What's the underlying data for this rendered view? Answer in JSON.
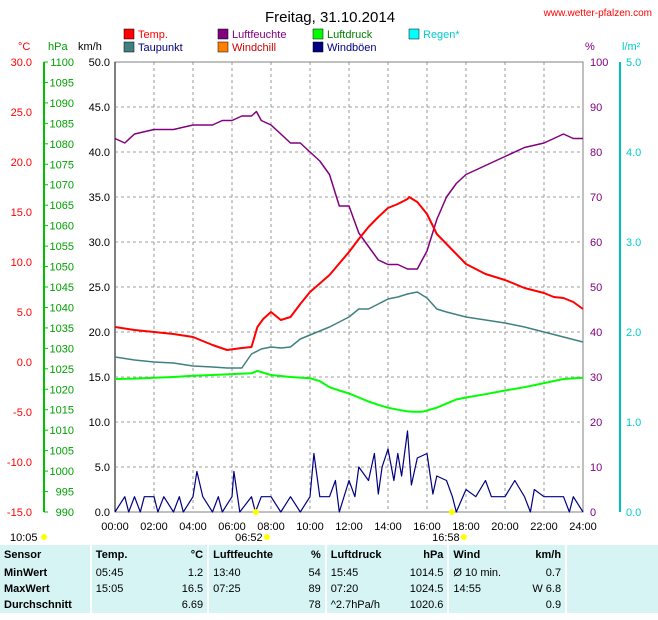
{
  "header": {
    "title": "Freitag, 31.10.2014",
    "url": "www.wetter-pfalzen.com"
  },
  "legend": [
    {
      "label": "Temp.",
      "color": "#ff0000"
    },
    {
      "label": "Luftfeuchte",
      "color": "#800080"
    },
    {
      "label": "Luftdruck",
      "color": "#00ff00"
    },
    {
      "label": "Regen",
      "sup": "*",
      "color": "#00ffff"
    },
    {
      "label": "Taupunkt",
      "color": "#408080"
    },
    {
      "label": "Windchill",
      "color": "#ff8000"
    },
    {
      "label": "Windböen",
      "color": "#000080"
    }
  ],
  "axes_units": {
    "celsius": "°C",
    "hpa": "hPa",
    "kmh": "km/h",
    "percent": "%",
    "lm2": "l/m²"
  },
  "axes_ticks": {
    "celsius": [
      "30.0",
      "25.0",
      "20.0",
      "15.0",
      "10.0",
      "5.0",
      "0.0",
      "-5.0",
      "-10.0",
      "-15.0"
    ],
    "hpa": [
      "1100",
      "1095",
      "1090",
      "1085",
      "1080",
      "1075",
      "1070",
      "1065",
      "1060",
      "1055",
      "1050",
      "1045",
      "1040",
      "1035",
      "1030",
      "1025",
      "1020",
      "1015",
      "1010",
      "1005",
      "1000",
      "995",
      "990"
    ],
    "kmh": [
      "50.0",
      "45.0",
      "40.0",
      "35.0",
      "30.0",
      "25.0",
      "20.0",
      "15.0",
      "10.0",
      "5.0",
      "0.0"
    ],
    "percent": [
      "100",
      "90",
      "80",
      "70",
      "60",
      "50",
      "40",
      "30",
      "20",
      "10",
      "0"
    ],
    "rain": [
      "5.0",
      "4.0",
      "3.0",
      "2.0",
      "1.0",
      "0.0"
    ],
    "x": [
      "00:00",
      "02:00",
      "04:00",
      "06:00",
      "08:00",
      "10:00",
      "12:00",
      "14:00",
      "16:00",
      "18:00",
      "20:00",
      "22:00",
      "24:00"
    ]
  },
  "sun": {
    "sunrise": "06:52",
    "sunset": "16:58",
    "daylength": "10:05"
  },
  "chart_data": {
    "type": "line",
    "title": "Freitag, 31.10.2014",
    "x_unit": "hours",
    "xlim": [
      0,
      24
    ],
    "series": [
      {
        "name": "Temp.",
        "axis": "celsius",
        "ylim": [
          -15,
          30
        ],
        "color": "#ff0000",
        "x": [
          0,
          1,
          2,
          3,
          4,
          5,
          5.75,
          6.5,
          7,
          7.3,
          7.6,
          8,
          8.5,
          9,
          9.5,
          10,
          11,
          12,
          12.5,
          13,
          13.5,
          14,
          14.5,
          15,
          15.08,
          15.5,
          16,
          16.5,
          17,
          17.5,
          18,
          19,
          20,
          21,
          22,
          22.5,
          23,
          23.5,
          24
        ],
        "y": [
          3.5,
          3.2,
          3,
          2.8,
          2.5,
          1.7,
          1.2,
          1.4,
          1.5,
          3.5,
          4.3,
          5,
          4.2,
          4.5,
          5.8,
          7,
          8.7,
          11,
          12.3,
          13.5,
          14.5,
          15.4,
          15.8,
          16.3,
          16.5,
          16,
          14.8,
          12.8,
          11.8,
          10.8,
          9.8,
          8.8,
          8.2,
          7.4,
          6.9,
          6.5,
          6.4,
          6,
          5.3
        ]
      },
      {
        "name": "Taupunkt",
        "axis": "celsius",
        "ylim": [
          -15,
          30
        ],
        "color": "#408080",
        "x": [
          0,
          1,
          2,
          3,
          4,
          5,
          5.75,
          6.5,
          7,
          7.5,
          8,
          8.5,
          9,
          9.5,
          10,
          11,
          12,
          12.5,
          13,
          13.5,
          14,
          14.5,
          15,
          15.5,
          16,
          16.5,
          17,
          18,
          19,
          20,
          21,
          22,
          23,
          24
        ],
        "y": [
          0.5,
          0.2,
          0,
          -0.1,
          -0.4,
          -0.5,
          -0.6,
          -0.6,
          0.8,
          1.3,
          1.5,
          1.4,
          1.5,
          2.3,
          2.7,
          3.5,
          4.5,
          5.3,
          5.3,
          5.8,
          6.3,
          6.5,
          6.8,
          7,
          6.4,
          5.3,
          5,
          4.5,
          4.2,
          3.9,
          3.5,
          3,
          2.5,
          2
        ]
      },
      {
        "name": "Luftfeuchte",
        "axis": "percent",
        "ylim": [
          0,
          100
        ],
        "color": "#800080",
        "x": [
          0,
          0.5,
          1,
          2,
          3,
          4,
          5,
          5.5,
          6,
          6.5,
          7,
          7.25,
          7.5,
          8,
          8.5,
          9,
          9.5,
          10,
          10.5,
          11,
          11.5,
          12,
          12.5,
          13,
          13.5,
          14,
          14.5,
          15,
          15.5,
          16,
          16.5,
          17,
          17.5,
          18,
          18.5,
          19,
          20,
          21,
          22,
          22.5,
          23,
          23.5,
          24
        ],
        "y": [
          83,
          82,
          84,
          85,
          85,
          86,
          86,
          87,
          87,
          88,
          88,
          89,
          87,
          86,
          84,
          82,
          82,
          80,
          78,
          75,
          68,
          68,
          62,
          59,
          56,
          55,
          55,
          54,
          54,
          58,
          65,
          70,
          73,
          75,
          76,
          77,
          79,
          81,
          82,
          83,
          84,
          83,
          83
        ]
      },
      {
        "name": "Luftdruck",
        "axis": "hpa",
        "ylim": [
          990,
          1100
        ],
        "color": "#00ff00",
        "x": [
          0,
          1,
          2,
          3,
          4,
          5,
          6,
          7,
          7.3,
          8,
          9,
          10,
          10.5,
          11,
          11.5,
          12,
          12.5,
          13,
          13.5,
          14,
          14.5,
          15,
          15.3,
          15.75,
          16,
          16.5,
          17,
          17.5,
          18,
          19,
          20,
          21,
          22,
          23,
          24
        ],
        "y": [
          1022.5,
          1022.6,
          1022.8,
          1023,
          1023.3,
          1023.5,
          1023.7,
          1023.9,
          1024.5,
          1023.5,
          1023,
          1022.7,
          1022,
          1020.5,
          1019.7,
          1019,
          1018,
          1017,
          1016.2,
          1015.5,
          1015,
          1014.6,
          1014.5,
          1014.5,
          1014.8,
          1015.5,
          1016.5,
          1017.5,
          1018,
          1018.8,
          1019.7,
          1020.5,
          1021.5,
          1022.5,
          1022.8
        ]
      },
      {
        "name": "Windböen",
        "axis": "kmh",
        "ylim": [
          0,
          50
        ],
        "color": "#000080",
        "x": [
          0,
          0.5,
          0.7,
          1,
          1.3,
          1.5,
          2,
          2.2,
          2.5,
          3,
          3.3,
          3.5,
          4,
          4.2,
          4.5,
          5,
          5.3,
          5.5,
          6,
          6.1,
          6.4,
          7,
          7.2,
          7.5,
          8,
          8.5,
          9,
          9.5,
          10,
          10.2,
          10.5,
          11,
          11.3,
          11.5,
          12,
          12.3,
          12.5,
          13,
          13.3,
          13.5,
          13.7,
          14,
          14.3,
          14.5,
          14.7,
          15,
          15.2,
          15.5,
          16,
          16.3,
          16.5,
          17,
          17.3,
          17.5,
          18,
          18.5,
          19,
          19.3,
          19.5,
          20,
          20.5,
          21,
          21.3,
          21.5,
          22,
          22.5,
          23,
          23.3,
          23.5,
          24
        ],
        "y": [
          0,
          1.7,
          0,
          1.7,
          0,
          1.7,
          1.7,
          0,
          1.7,
          0,
          1.7,
          0,
          1.7,
          4.5,
          1.7,
          0,
          1.7,
          0,
          1.7,
          4.5,
          0,
          1.7,
          0,
          1.7,
          1.7,
          0,
          1.7,
          0,
          1.7,
          6.5,
          1.7,
          1.7,
          3.5,
          0,
          3.5,
          1.7,
          5,
          3.5,
          6.5,
          2,
          5,
          7,
          3.5,
          6.5,
          4,
          9,
          3,
          6,
          6.5,
          2,
          4,
          3.5,
          1.7,
          0,
          2.5,
          1.7,
          3.5,
          1.7,
          1.7,
          1.7,
          3.5,
          1.7,
          0,
          2.5,
          1.7,
          1.7,
          1.7,
          0,
          1.7,
          0
        ]
      }
    ]
  },
  "stats": {
    "headers": {
      "sensor": "Sensor",
      "temp": "Temp.",
      "temp_unit": "°C",
      "hum": "Luftfeuchte",
      "hum_unit": "%",
      "press": "Luftdruck",
      "press_unit": "hPa",
      "wind": "Wind",
      "wind_unit": "km/h"
    },
    "rows": [
      {
        "label": "MinWert",
        "temp_time": "05:45",
        "temp_val": "1.2",
        "hum_time": "13:40",
        "hum_val": "54",
        "press_time": "15:45",
        "press_val": "1014.5",
        "wind_time": "Ø 10 min.",
        "wind_val": "0.7"
      },
      {
        "label": "MaxWert",
        "temp_time": "15:05",
        "temp_val": "16.5",
        "hum_time": "07:25",
        "hum_val": "89",
        "press_time": "07:20",
        "press_val": "1024.5",
        "wind_time": "14:55",
        "wind_val": "W 6.8"
      },
      {
        "label": "Durchschnitt",
        "temp_time": "",
        "temp_val": "6.69",
        "hum_time": "",
        "hum_val": "78",
        "press_time": "^2.7hPa/h",
        "press_val": "1020.6",
        "wind_time": "",
        "wind_val": "0.9"
      }
    ]
  }
}
